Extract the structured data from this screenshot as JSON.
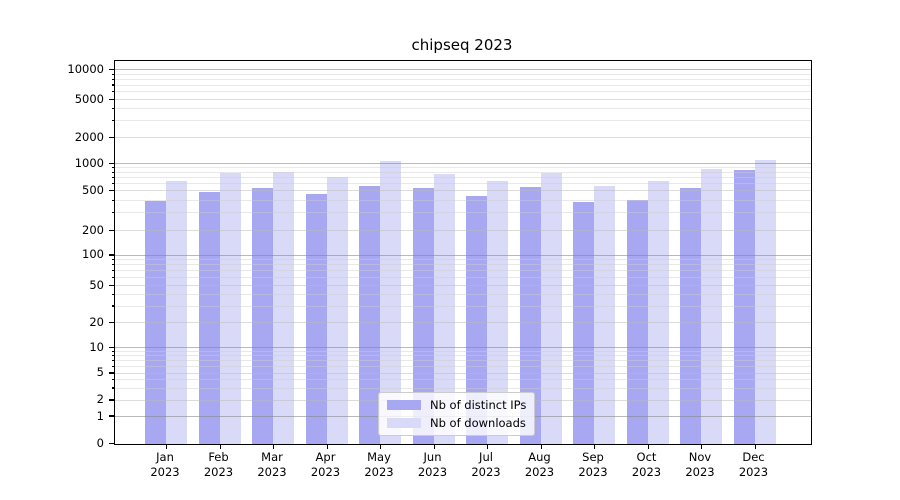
{
  "figure": {
    "title": "chipseq 2023"
  },
  "chart_data": {
    "type": "bar",
    "title": "chipseq 2023",
    "y_scale": "symlog",
    "grid": true,
    "legend_position": "lower center",
    "ylim": [
      0,
      13000
    ],
    "y_ticks": [
      0,
      1,
      2,
      5,
      10,
      20,
      50,
      100,
      200,
      500,
      1000,
      2000,
      5000,
      10000
    ],
    "months": [
      "Jan",
      "Feb",
      "Mar",
      "Apr",
      "May",
      "Jun",
      "Jul",
      "Aug",
      "Sep",
      "Oct",
      "Nov",
      "Dec"
    ],
    "year": "2023",
    "categories": [
      "Jan 2023",
      "Feb 2023",
      "Mar 2023",
      "Apr 2023",
      "May 2023",
      "Jun 2023",
      "Jul 2023",
      "Aug 2023",
      "Sep 2023",
      "Oct 2023",
      "Nov 2023",
      "Dec 2023"
    ],
    "series": [
      {
        "name": "Nb of distinct IPs",
        "color": "#a8a8f2",
        "values": [
          400,
          490,
          545,
          470,
          570,
          535,
          445,
          550,
          390,
          410,
          540,
          860
        ]
      },
      {
        "name": "Nb of downloads",
        "color": "#d9d9f8",
        "values": [
          640,
          800,
          820,
          710,
          1085,
          770,
          640,
          800,
          575,
          650,
          880,
          1100
        ]
      }
    ]
  }
}
